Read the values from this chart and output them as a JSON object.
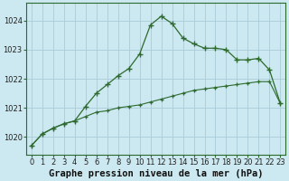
{
  "title": "Graphe pression niveau de la mer (hPa)",
  "background_color": "#cce8f0",
  "grid_color": "#aaccd8",
  "line_color": "#2d6a2d",
  "x_ticks": [
    0,
    1,
    2,
    3,
    4,
    5,
    6,
    7,
    8,
    9,
    10,
    11,
    12,
    13,
    14,
    15,
    16,
    17,
    18,
    19,
    20,
    21,
    22,
    23
  ],
  "y_ticks": [
    1020,
    1021,
    1022,
    1023,
    1024
  ],
  "xlim": [
    -0.5,
    23.5
  ],
  "ylim": [
    1019.4,
    1024.6
  ],
  "series1": [
    1019.7,
    1020.1,
    1020.3,
    1020.45,
    1020.55,
    1021.05,
    1021.5,
    1021.8,
    1022.1,
    1022.35,
    1022.85,
    1023.85,
    1024.15,
    1023.9,
    1023.4,
    1023.2,
    1023.05,
    1023.05,
    1023.0,
    1022.65,
    1022.65,
    1022.7,
    1022.3,
    1021.15
  ],
  "series2": [
    1019.7,
    1020.1,
    1020.3,
    1020.45,
    1020.55,
    1020.7,
    1020.85,
    1020.9,
    1021.0,
    1021.05,
    1021.1,
    1021.2,
    1021.3,
    1021.4,
    1021.5,
    1021.6,
    1021.65,
    1021.7,
    1021.75,
    1021.8,
    1021.85,
    1021.9,
    1021.9,
    1021.15
  ],
  "title_fontsize": 7.5,
  "tick_fontsize": 6
}
